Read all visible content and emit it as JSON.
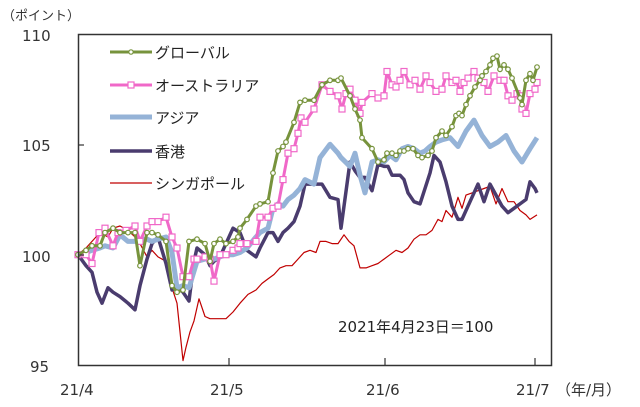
{
  "chart_data": {
    "type": "line",
    "title": "",
    "ylabel": "（ポイント）",
    "xlabel": "（年/月）",
    "ylim": [
      95,
      110
    ],
    "yticks": [
      95,
      100,
      105,
      110
    ],
    "xticks": [
      {
        "label": "21/4",
        "px": 78
      },
      {
        "label": "21/5",
        "px": 229
      },
      {
        "label": "21/6",
        "px": 385
      },
      {
        "label": "21/7",
        "px": 535
      }
    ],
    "grid": false,
    "legend_position": "upper-left inside",
    "annotation": "2021年4月23日＝100",
    "series": [
      {
        "name": "グローバル",
        "color": "#77933C",
        "width": 3,
        "marker": "circle",
        "x": [
          78,
          86,
          92,
          100,
          105,
          113,
          120,
          128,
          135,
          140,
          147,
          152,
          158,
          166,
          172,
          177,
          183,
          189,
          197,
          205,
          210,
          214,
          220,
          226,
          233,
          238,
          240,
          247,
          256,
          260,
          268,
          273,
          278,
          283,
          286,
          294,
          300,
          305,
          314,
          322,
          330,
          338,
          341,
          350,
          355,
          360,
          362,
          372,
          378,
          384,
          387,
          392,
          396,
          400,
          404,
          408,
          413,
          418,
          422,
          428,
          432,
          436,
          442,
          446,
          452,
          456,
          459,
          462,
          466,
          470,
          475,
          480,
          482,
          486,
          490,
          493,
          497,
          500,
          504,
          508,
          512,
          520,
          522,
          526,
          530,
          533,
          537
        ],
        "values": [
          100.0,
          100.2,
          100.4,
          100.4,
          101.0,
          101.2,
          101.0,
          101.0,
          101.0,
          99.5,
          101.0,
          101.0,
          100.9,
          100.6,
          98.6,
          98.3,
          98.4,
          100.6,
          100.7,
          100.5,
          99.7,
          100.5,
          100.7,
          100.5,
          100.6,
          100.8,
          101.2,
          101.6,
          102.2,
          102.3,
          102.4,
          103.7,
          104.7,
          104.9,
          105.1,
          106.0,
          106.9,
          107.0,
          107.0,
          107.7,
          107.9,
          107.9,
          108.0,
          107.2,
          106.6,
          106.1,
          105.3,
          104.8,
          104.2,
          104.3,
          104.6,
          104.6,
          104.5,
          104.7,
          104.7,
          104.8,
          104.8,
          104.5,
          104.4,
          104.5,
          104.7,
          105.3,
          105.6,
          105.4,
          105.8,
          106.3,
          106.4,
          106.3,
          106.8,
          107.2,
          107.6,
          107.9,
          108.1,
          108.3,
          108.6,
          108.9,
          109.0,
          108.4,
          108.6,
          108.4,
          108.0,
          107.1,
          106.8,
          107.9,
          108.2,
          107.9,
          108.5
        ]
      },
      {
        "name": "オーストラリア",
        "color": "#F068C8",
        "width": 3,
        "marker": "square",
        "x": [
          78,
          86,
          92,
          99,
          105,
          113,
          118,
          126,
          135,
          140,
          147,
          152,
          158,
          166,
          172,
          177,
          183,
          189,
          194,
          197,
          205,
          210,
          214,
          220,
          226,
          233,
          238,
          240,
          247,
          256,
          260,
          268,
          273,
          278,
          283,
          288,
          294,
          298,
          301,
          305,
          314,
          322,
          330,
          338,
          342,
          346,
          350,
          355,
          360,
          362,
          372,
          378,
          384,
          387,
          392,
          396,
          400,
          404,
          410,
          415,
          420,
          426,
          430,
          436,
          442,
          446,
          452,
          456,
          460,
          464,
          468,
          474,
          478,
          484,
          488,
          494,
          500,
          504,
          508,
          512,
          517,
          520,
          522,
          526,
          530,
          535,
          537
        ],
        "values": [
          100.0,
          100.0,
          99.6,
          101.0,
          101.2,
          100.4,
          101.0,
          101.1,
          101.3,
          100.6,
          101.3,
          101.5,
          101.5,
          101.7,
          100.8,
          100.3,
          99.0,
          99.0,
          99.8,
          99.8,
          99.9,
          99.8,
          98.8,
          100.0,
          100.0,
          100.2,
          100.3,
          100.5,
          100.5,
          100.6,
          101.7,
          101.7,
          102.1,
          102.2,
          103.4,
          104.6,
          104.8,
          105.5,
          106.2,
          106.0,
          106.6,
          107.7,
          107.4,
          107.2,
          106.6,
          107.3,
          107.5,
          107.0,
          106.4,
          106.9,
          107.3,
          107.1,
          107.2,
          108.3,
          107.7,
          107.6,
          107.9,
          108.3,
          107.7,
          107.9,
          107.5,
          108.1,
          107.8,
          107.4,
          107.5,
          108.1,
          107.8,
          107.9,
          107.4,
          107.8,
          108.0,
          108.3,
          108.0,
          107.8,
          107.4,
          108.1,
          107.9,
          107.9,
          107.2,
          107.0,
          107.3,
          107.2,
          106.6,
          106.4,
          107.3,
          107.5,
          107.8
        ]
      },
      {
        "name": "アジア",
        "color": "#95B3D7",
        "width": 5,
        "marker": "none",
        "x": [
          78,
          86,
          92,
          100,
          105,
          113,
          120,
          128,
          135,
          140,
          147,
          152,
          158,
          166,
          172,
          177,
          183,
          189,
          197,
          205,
          210,
          214,
          220,
          226,
          233,
          240,
          247,
          256,
          260,
          268,
          273,
          278,
          283,
          288,
          294,
          300,
          305,
          314,
          320,
          330,
          338,
          341,
          350,
          355,
          360,
          365,
          372,
          378,
          384,
          390,
          396,
          402,
          408,
          414,
          420,
          425,
          430,
          436,
          442,
          450,
          458,
          466,
          474,
          482,
          490,
          498,
          506,
          514,
          522,
          530,
          537
        ],
        "values": [
          100.0,
          100.1,
          100.2,
          100.3,
          100.4,
          100.3,
          100.9,
          100.6,
          100.6,
          100.7,
          100.7,
          100.6,
          100.7,
          100.8,
          100.1,
          98.5,
          98.6,
          98.5,
          99.7,
          99.8,
          99.9,
          99.8,
          99.9,
          100.0,
          100.0,
          100.1,
          100.3,
          100.8,
          101.0,
          101.2,
          102.1,
          102.3,
          102.2,
          102.5,
          102.7,
          103.0,
          103.4,
          103.2,
          104.4,
          105.0,
          104.6,
          104.4,
          104.0,
          104.6,
          103.6,
          102.8,
          104.2,
          104.3,
          104.2,
          104.5,
          104.3,
          104.8,
          104.9,
          104.8,
          104.6,
          104.7,
          104.9,
          105.1,
          105.2,
          105.3,
          104.9,
          105.6,
          106.1,
          105.4,
          104.9,
          105.1,
          105.4,
          104.7,
          104.2,
          104.8,
          105.3
        ]
      },
      {
        "name": "香港",
        "color": "#4A3C6E",
        "width": 3.5,
        "marker": "none",
        "x": [
          78,
          86,
          92,
          97,
          102,
          108,
          113,
          120,
          128,
          135,
          140,
          147,
          152,
          158,
          166,
          172,
          177,
          183,
          189,
          194,
          197,
          205,
          210,
          214,
          220,
          226,
          233,
          240,
          247,
          256,
          260,
          268,
          273,
          278,
          283,
          288,
          294,
          300,
          305,
          314,
          318,
          322,
          330,
          338,
          341,
          350,
          355,
          360,
          365,
          372,
          378,
          384,
          388,
          392,
          396,
          400,
          404,
          408,
          414,
          420,
          425,
          430,
          434,
          440,
          446,
          452,
          458,
          462,
          466,
          472,
          478,
          484,
          490,
          496,
          502,
          508,
          514,
          520,
          526,
          530,
          535,
          537
        ],
        "values": [
          100.0,
          99.5,
          99.2,
          98.3,
          97.8,
          98.5,
          98.3,
          98.1,
          97.8,
          97.5,
          98.6,
          99.8,
          100.5,
          100.8,
          99.6,
          98.4,
          98.6,
          98.3,
          97.9,
          99.7,
          100.3,
          100.0,
          99.5,
          99.7,
          99.9,
          100.5,
          101.2,
          101.0,
          100.2,
          99.9,
          100.3,
          101.0,
          101.0,
          100.6,
          101.0,
          101.2,
          101.5,
          102.2,
          103.2,
          103.2,
          103.2,
          103.2,
          102.6,
          102.5,
          101.2,
          104.2,
          103.8,
          103.5,
          103.5,
          102.9,
          104.1,
          104.0,
          104.0,
          103.6,
          103.6,
          103.6,
          103.4,
          102.8,
          102.4,
          102.3,
          103.0,
          103.7,
          104.5,
          104.2,
          103.3,
          102.2,
          101.6,
          101.6,
          102.0,
          102.6,
          103.2,
          102.4,
          103.2,
          102.7,
          102.2,
          101.9,
          102.1,
          102.3,
          102.5,
          103.3,
          103.0,
          102.8
        ]
      },
      {
        "name": "シンガポール",
        "color": "#C00000",
        "width": 1.2,
        "marker": "none",
        "x": [
          78,
          86,
          92,
          100,
          108,
          113,
          120,
          128,
          135,
          140,
          147,
          152,
          158,
          166,
          172,
          177,
          183,
          186,
          190,
          194,
          199,
          205,
          210,
          218,
          226,
          233,
          240,
          248,
          256,
          262,
          268,
          274,
          280,
          286,
          292,
          298,
          304,
          310,
          316,
          320,
          326,
          332,
          338,
          344,
          349,
          354,
          360,
          366,
          372,
          378,
          384,
          390,
          396,
          402,
          408,
          414,
          420,
          426,
          432,
          438,
          442,
          446,
          452,
          458,
          462,
          466,
          472,
          478,
          484,
          490,
          496,
          502,
          508,
          514,
          520,
          526,
          530,
          537
        ],
        "values": [
          100.0,
          100.3,
          100.6,
          101.0,
          100.8,
          101.2,
          101.3,
          101.1,
          100.8,
          100.5,
          99.9,
          100.2,
          99.9,
          99.7,
          98.5,
          97.8,
          95.2,
          95.8,
          96.5,
          97.0,
          98.0,
          97.2,
          97.1,
          97.1,
          97.1,
          97.4,
          97.8,
          98.2,
          98.4,
          98.7,
          98.9,
          99.1,
          99.4,
          99.5,
          99.5,
          99.8,
          100.1,
          100.2,
          100.1,
          100.6,
          100.6,
          100.5,
          100.5,
          100.9,
          100.6,
          100.4,
          99.4,
          99.4,
          99.5,
          99.6,
          99.8,
          100.0,
          100.2,
          100.1,
          100.3,
          100.7,
          100.9,
          100.9,
          101.1,
          101.6,
          101.5,
          102.0,
          101.7,
          102.6,
          102.1,
          102.7,
          102.8,
          102.9,
          103.0,
          103.1,
          102.3,
          103.0,
          102.4,
          102.4,
          102.0,
          101.8,
          101.6,
          101.8
        ]
      }
    ]
  },
  "axes": {
    "y_unit_label": "（ポイント）",
    "x_unit_label": "（年/月）",
    "y_tick_labels": [
      "110",
      "105",
      "100",
      "95"
    ],
    "x_tick_labels": [
      "21/4",
      "21/5",
      "21/6",
      "21/7"
    ]
  },
  "legend": {
    "items": [
      {
        "label": "グローバル",
        "color": "#77933C",
        "marker": "circle"
      },
      {
        "label": "オーストラリア",
        "color": "#F068C8",
        "marker": "square"
      },
      {
        "label": "アジア",
        "color": "#95B3D7",
        "marker": "none"
      },
      {
        "label": "香港",
        "color": "#4A3C6E",
        "marker": "none"
      },
      {
        "label": "シンガポール",
        "color": "#C00000",
        "marker": "none"
      }
    ]
  },
  "note": "2021年4月23日＝100"
}
